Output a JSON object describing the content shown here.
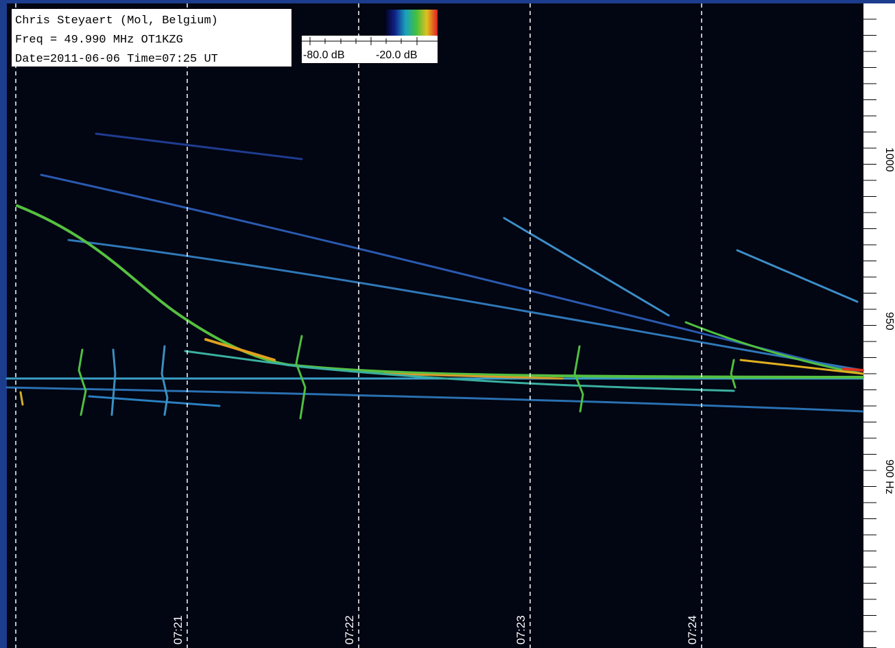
{
  "header": {
    "lines": [
      "Chris Steyaert (Mol, Belgium)",
      "Freq = 49.990 MHz  OT1KZG",
      "Date=2011-06-06 Time=07:25 UT"
    ]
  },
  "colorbar": {
    "min_label": "-80.0 dB",
    "max_label": "-20.0 dB"
  },
  "time_axis": {
    "labels": [
      "07:21",
      "07:22",
      "07:23",
      "07:24"
    ]
  },
  "freq_axis": {
    "labels": [
      "1000",
      "950",
      "900 Hz"
    ]
  }
}
